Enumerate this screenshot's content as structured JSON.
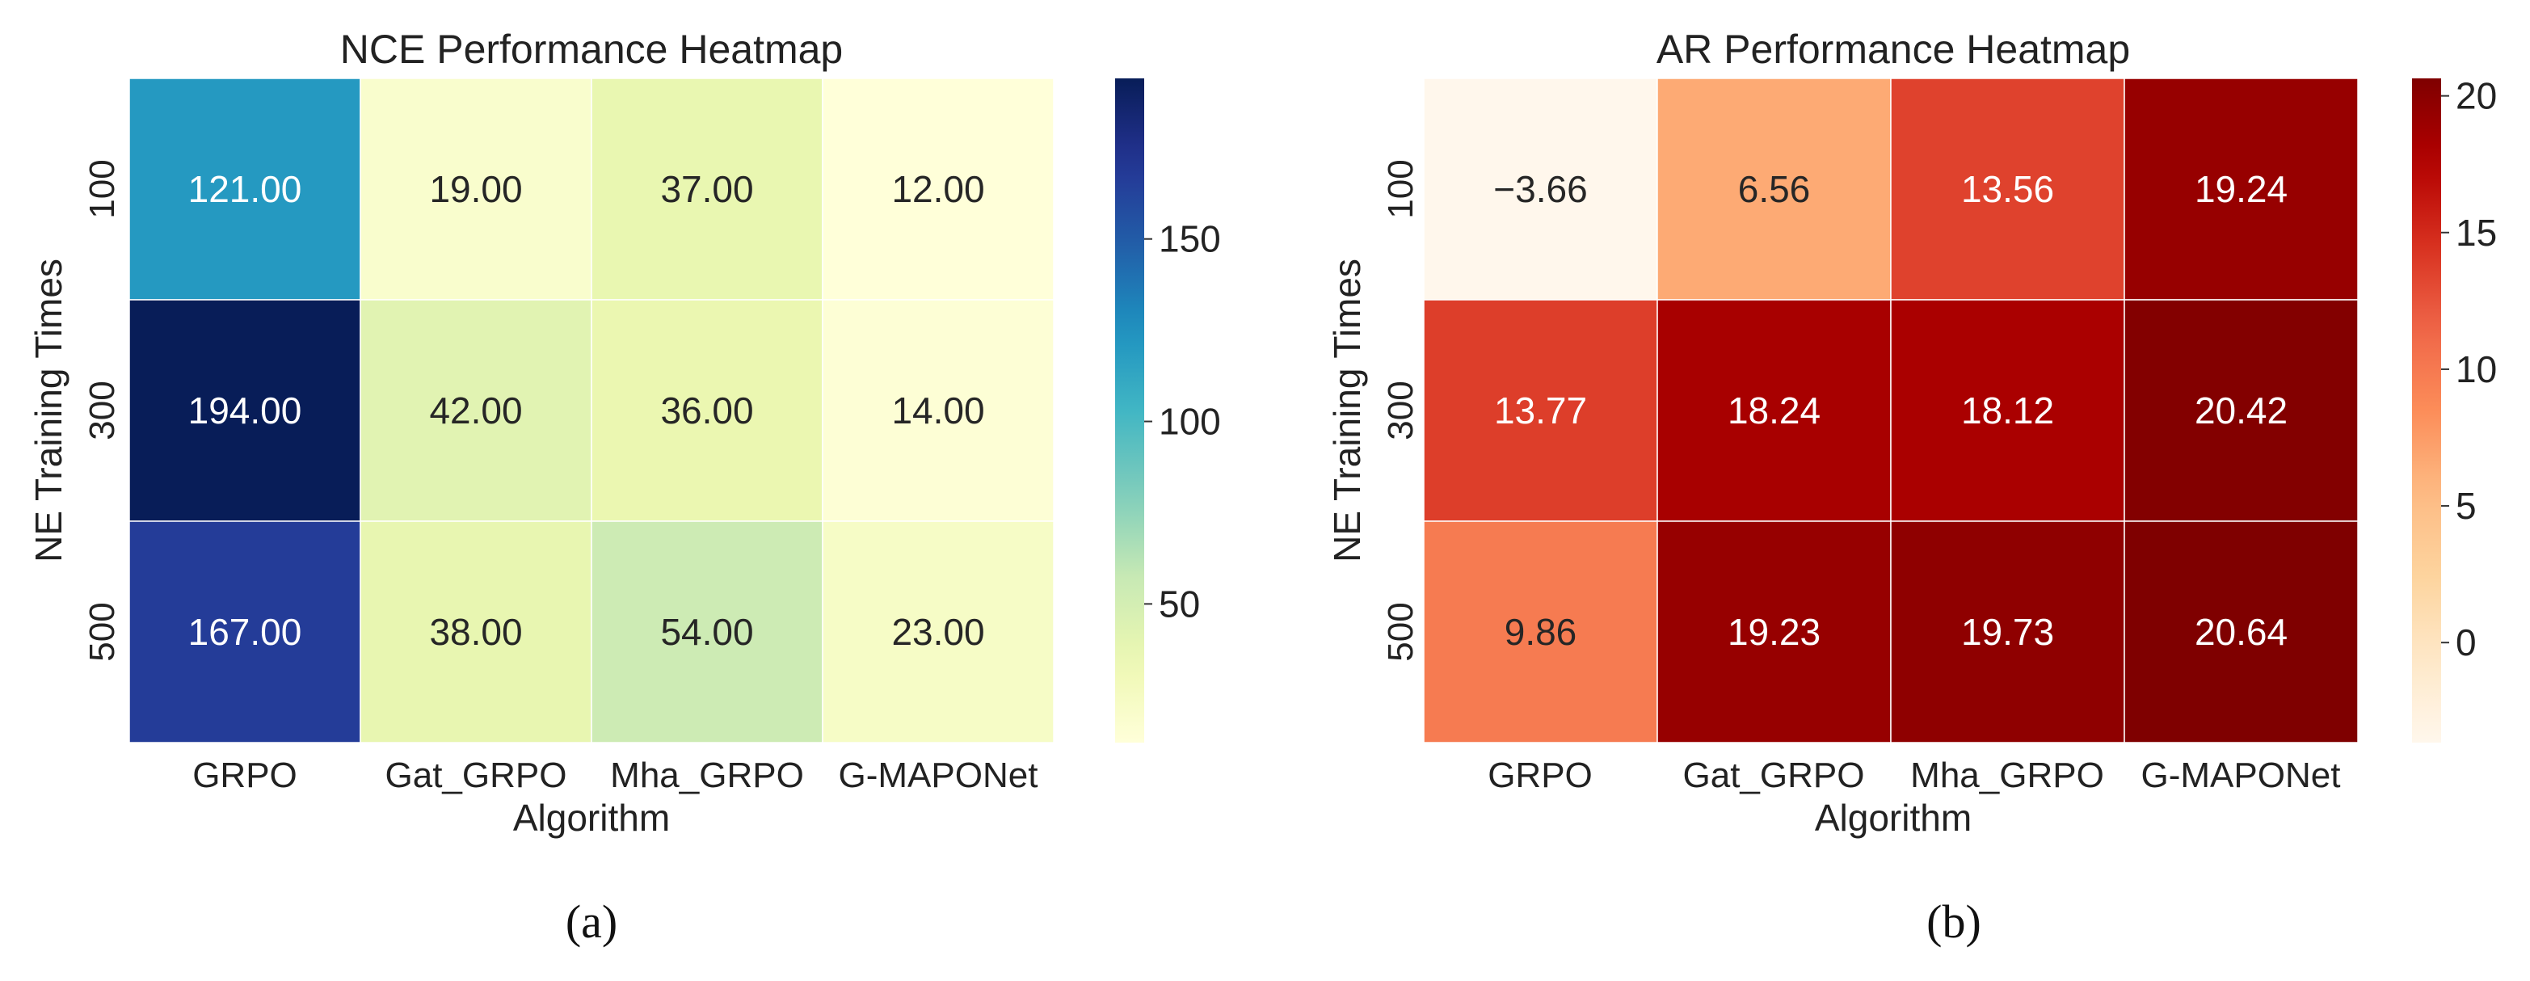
{
  "chart_data": [
    {
      "type": "heatmap",
      "title": "NCE Performance Heatmap",
      "xlabel": "Algorithm",
      "ylabel": "NE Training Times",
      "x_categories": [
        "GRPO",
        "Gat_GRPO",
        "Mha_GRPO",
        "G-MAPONet"
      ],
      "y_categories": [
        "100",
        "300",
        "500"
      ],
      "values": [
        [
          121.0,
          19.0,
          37.0,
          12.0
        ],
        [
          194.0,
          42.0,
          36.0,
          14.0
        ],
        [
          167.0,
          38.0,
          54.0,
          23.0
        ]
      ],
      "value_labels": [
        [
          "121.00",
          "19.00",
          "37.00",
          "12.00"
        ],
        [
          "194.00",
          "42.00",
          "36.00",
          "14.00"
        ],
        [
          "167.00",
          "38.00",
          "54.00",
          "23.00"
        ]
      ],
      "colormap": "YlGnBu",
      "vmin": 12.0,
      "vmax": 194.0,
      "colorbar_ticks": [
        50,
        100,
        150
      ],
      "panel_label": "(a)"
    },
    {
      "type": "heatmap",
      "title": "AR Performance Heatmap",
      "xlabel": "Algorithm",
      "ylabel": "NE Training Times",
      "x_categories": [
        "GRPO",
        "Gat_GRPO",
        "Mha_GRPO",
        "G-MAPONet"
      ],
      "y_categories": [
        "100",
        "300",
        "500"
      ],
      "values": [
        [
          -3.66,
          6.56,
          13.56,
          19.24
        ],
        [
          13.77,
          18.24,
          18.12,
          20.42
        ],
        [
          9.86,
          19.23,
          19.73,
          20.64
        ]
      ],
      "value_labels": [
        [
          "−3.66",
          "6.56",
          "13.56",
          "19.24"
        ],
        [
          "13.77",
          "18.24",
          "18.12",
          "20.42"
        ],
        [
          "9.86",
          "19.23",
          "19.73",
          "20.64"
        ]
      ],
      "colormap": "OrRd",
      "vmin": -3.66,
      "vmax": 20.64,
      "colorbar_ticks": [
        0,
        5,
        10,
        15,
        20
      ],
      "panel_label": "(b)"
    }
  ]
}
